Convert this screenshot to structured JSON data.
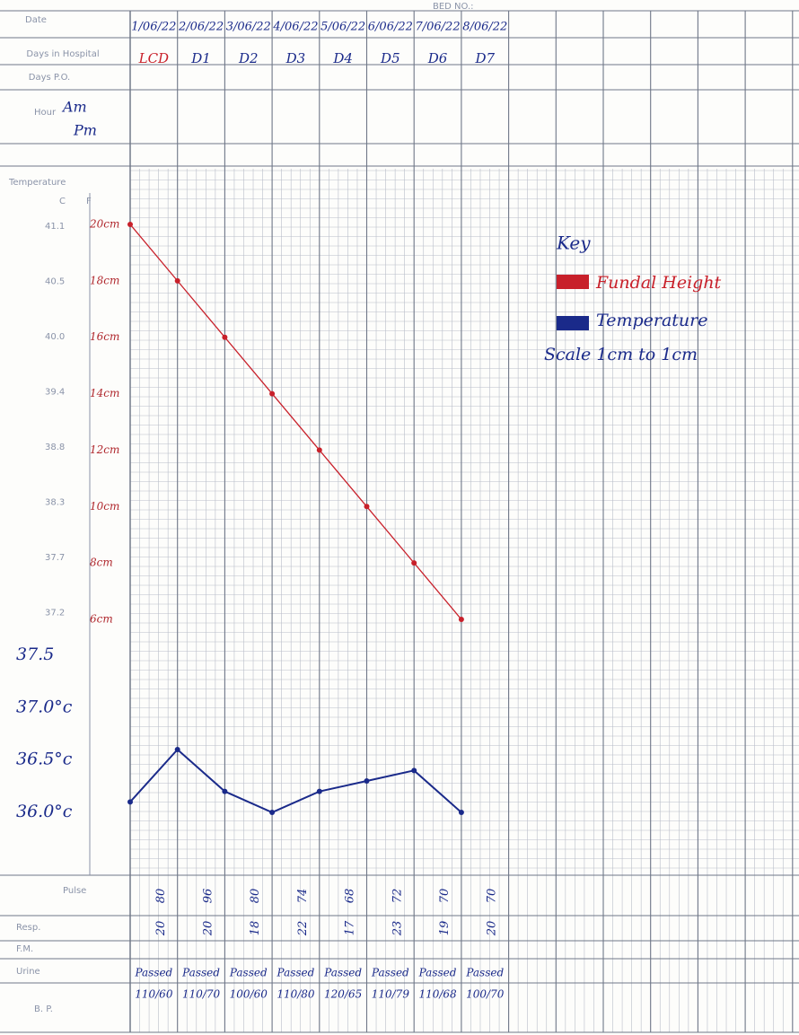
{
  "header": {
    "bed_no": "BED NO.:"
  },
  "rows": {
    "date": "Date",
    "days_in_hospital": "Days in Hospital",
    "days_po": "Days P.O.",
    "hour": "Hour",
    "temperature": "Temperature",
    "c": "C",
    "f": "F",
    "pulse": "Pulse",
    "resp": "Resp.",
    "fm": "F.M.",
    "urine": "Urine",
    "bp": "B. P."
  },
  "hour_entries": [
    "Am",
    "Pm"
  ],
  "days": [
    {
      "date": "1/06/22",
      "day": "LCD",
      "pulse": "80",
      "resp": "20",
      "urine": "Passed",
      "bp": "110/60",
      "fundal_height": 20,
      "temperature": 36.1
    },
    {
      "date": "2/06/22",
      "day": "D1",
      "pulse": "96",
      "resp": "20",
      "urine": "Passed",
      "bp": "110/70",
      "fundal_height": 18,
      "temperature": 36.6
    },
    {
      "date": "3/06/22",
      "day": "D2",
      "pulse": "80",
      "resp": "18",
      "urine": "Passed",
      "bp": "100/60",
      "fundal_height": 16,
      "temperature": 36.2
    },
    {
      "date": "4/06/22",
      "day": "D3",
      "pulse": "74",
      "resp": "22",
      "urine": "Passed",
      "bp": "110/80",
      "fundal_height": 14,
      "temperature": 36.0
    },
    {
      "date": "5/06/22",
      "day": "D4",
      "pulse": "68",
      "resp": "17",
      "urine": "Passed",
      "bp": "120/65",
      "fundal_height": 12,
      "temperature": 36.2
    },
    {
      "date": "6/06/22",
      "day": "D5",
      "pulse": "72",
      "resp": "23",
      "urine": "Passed",
      "bp": "110/79",
      "fundal_height": 10,
      "temperature": 36.3
    },
    {
      "date": "7/06/22",
      "day": "D6",
      "pulse": "70",
      "resp": "19",
      "urine": "Passed",
      "bp": "110/68",
      "fundal_height": 8,
      "temperature": 36.4
    },
    {
      "date": "8/06/22",
      "day": "D7",
      "pulse": "70",
      "resp": "20",
      "urine": "Passed",
      "bp": "100/70",
      "fundal_height": 6,
      "temperature": 36.0
    }
  ],
  "printed_celsius": [
    "41.1",
    "40.5",
    "40.0",
    "39.4",
    "38.8",
    "38.3",
    "37.7",
    "37.2"
  ],
  "fundal_scale": [
    {
      "value": 20,
      "label": "20cm"
    },
    {
      "value": 18,
      "label": "18cm"
    },
    {
      "value": 16,
      "label": "16cm"
    },
    {
      "value": 14,
      "label": "14cm"
    },
    {
      "value": 12,
      "label": "12cm"
    },
    {
      "value": 10,
      "label": "10cm"
    },
    {
      "value": 8,
      "label": "8cm"
    },
    {
      "value": 6,
      "label": "6cm"
    }
  ],
  "temperature_scale": [
    {
      "value": 37.5,
      "label": "37.5"
    },
    {
      "value": 37,
      "label": "37.0°c"
    },
    {
      "value": 36.5,
      "label": "36.5°c"
    },
    {
      "value": 36,
      "label": "36.0°c"
    }
  ],
  "key": {
    "title": "Key",
    "items": [
      {
        "label": "Fundal Height",
        "color": "#c8202a"
      },
      {
        "label": "Temperature",
        "color": "#1a2a8a"
      }
    ],
    "scale": "Scale 1cm to 1cm"
  }
}
